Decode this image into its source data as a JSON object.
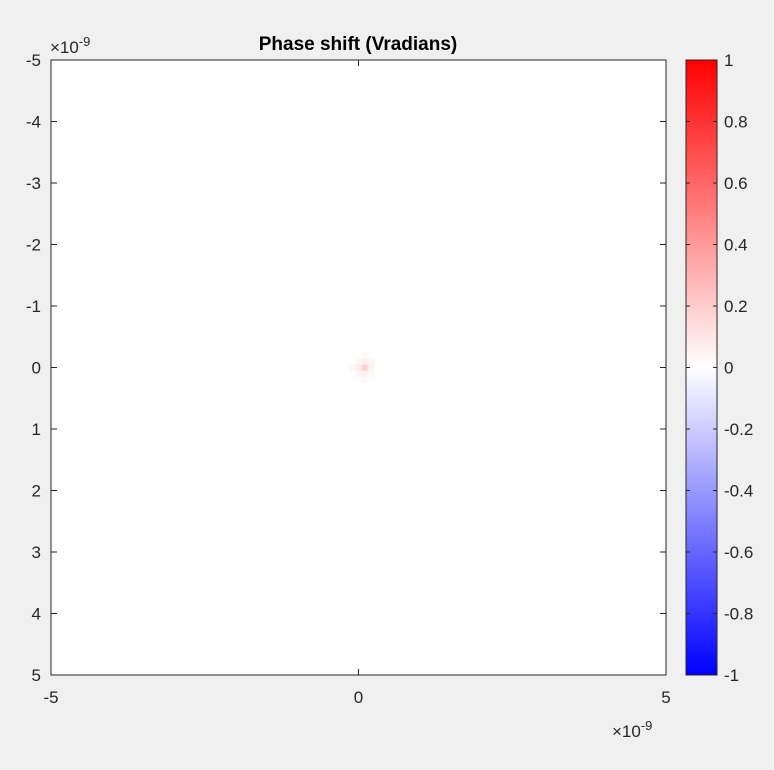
{
  "chart_data": {
    "type": "heatmap",
    "title": "Phase shift (Vradians)",
    "xlabel": "",
    "ylabel": "",
    "x_exponent_label": "×10",
    "x_exponent_power": "-9",
    "y_exponent_label": "×10",
    "y_exponent_power": "-9",
    "xlim": [
      -5e-09,
      5e-09
    ],
    "ylim": [
      -5e-09,
      5e-09
    ],
    "y_direction": "reverse",
    "x_ticks": [
      -5,
      0,
      5
    ],
    "x_tick_labels": [
      "-5",
      "0",
      "5"
    ],
    "y_ticks": [
      -5,
      -4,
      -3,
      -2,
      -1,
      0,
      1,
      2,
      3,
      4,
      5
    ],
    "y_tick_labels": [
      "-5",
      "-4",
      "-3",
      "-2",
      "-1",
      "0",
      "1",
      "2",
      "3",
      "4",
      "5"
    ],
    "grid": false,
    "background_value": 0,
    "hotspots": [
      {
        "x": 1e-10,
        "y": 0.0,
        "value": 0.18
      },
      {
        "x": 0.0,
        "y": 0.0,
        "value": 0.08
      },
      {
        "x": 1e-10,
        "y": -1e-10,
        "value": 0.06
      },
      {
        "x": 1e-10,
        "y": 1e-10,
        "value": 0.06
      },
      {
        "x": 2e-10,
        "y": 0.0,
        "value": 0.06
      },
      {
        "x": -1e-10,
        "y": 0.0,
        "value": 0.03
      },
      {
        "x": 0.0,
        "y": -1e-10,
        "value": 0.04
      },
      {
        "x": 0.0,
        "y": 1e-10,
        "value": 0.04
      },
      {
        "x": 2e-10,
        "y": -1e-10,
        "value": 0.03
      },
      {
        "x": 2e-10,
        "y": 1e-10,
        "value": 0.03
      },
      {
        "x": 1e-10,
        "y": -2e-10,
        "value": 0.02
      },
      {
        "x": 1e-10,
        "y": 2e-10,
        "value": 0.02
      }
    ],
    "cell_size": 1e-10,
    "colorbar": {
      "limits": [
        -1,
        1
      ],
      "ticks": [
        1,
        0.8,
        0.6,
        0.4,
        0.2,
        0,
        -0.2,
        -0.4,
        -0.6,
        -0.8,
        -1
      ],
      "tick_labels": [
        "1",
        "0.8",
        "0.6",
        "0.4",
        "0.2",
        "0",
        "-0.2",
        "-0.4",
        "-0.6",
        "-0.8",
        "-1"
      ],
      "colormap": {
        "low": "#0000ff",
        "mid": "#ffffff",
        "high": "#ff0000"
      }
    }
  }
}
